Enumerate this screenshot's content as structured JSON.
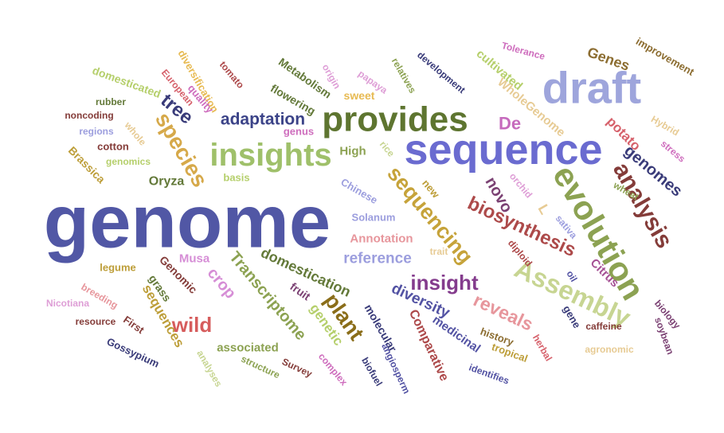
{
  "word_cloud": {
    "words": [
      {
        "text": "genome",
        "color": "#5157a5"
      },
      {
        "text": "sequence",
        "color": "#6a6bd0"
      },
      {
        "text": "draft",
        "color": "#9ea5dc"
      },
      {
        "text": "provides",
        "color": "#5e7530"
      },
      {
        "text": "insights",
        "color": "#9fc06a"
      },
      {
        "text": "evolution",
        "color": "#8ca252"
      },
      {
        "text": "Assembly",
        "color": "#c7d592"
      },
      {
        "text": "analysis",
        "color": "#843c39"
      },
      {
        "text": "sequencing",
        "color": "#c6a33a"
      },
      {
        "text": "species",
        "color": "#d6a94a"
      },
      {
        "text": "biosynthesis",
        "color": "#ad4a4a"
      },
      {
        "text": "plant",
        "color": "#8a6d19"
      },
      {
        "text": "wild",
        "color": "#d65c5c"
      },
      {
        "text": "insight",
        "color": "#843c8d"
      },
      {
        "text": "reveals",
        "color": "#e7969c"
      },
      {
        "text": "adaptation",
        "color": "#3b4388"
      },
      {
        "text": "genomes",
        "color": "#393b79"
      },
      {
        "text": "diversity",
        "color": "#5252a3"
      },
      {
        "text": "reference",
        "color": "#9c9ede"
      },
      {
        "text": "domestication",
        "color": "#637939"
      },
      {
        "text": "Transcriptome",
        "color": "#8ca252"
      },
      {
        "text": "tree",
        "color": "#393b79"
      },
      {
        "text": "De",
        "color": "#c66bbd"
      },
      {
        "text": "novo",
        "color": "#7b4173"
      },
      {
        "text": "crop",
        "color": "#d68ed6"
      },
      {
        "text": "sequences",
        "color": "#bd9e39"
      },
      {
        "text": "Genes",
        "color": "#8c6d31"
      },
      {
        "text": "potato",
        "color": "#d6616b"
      },
      {
        "text": "Comparative",
        "color": "#ad494a"
      },
      {
        "text": "genetic",
        "color": "#b5cf6b"
      },
      {
        "text": "WholeGenome",
        "color": "#e7cb94"
      },
      {
        "text": "Citrus",
        "color": "#a55194"
      },
      {
        "text": "Oryza",
        "color": "#637939"
      },
      {
        "text": "High",
        "color": "#8ca252"
      },
      {
        "text": "cultivated",
        "color": "#b5cf6b"
      },
      {
        "text": "improvement",
        "color": "#8c6d31"
      },
      {
        "text": "Metabolism",
        "color": "#637939"
      },
      {
        "text": "flowering",
        "color": "#637939"
      },
      {
        "text": "medicinal",
        "color": "#5252a3"
      },
      {
        "text": "molecular",
        "color": "#393b79"
      },
      {
        "text": "associated",
        "color": "#8ca252"
      },
      {
        "text": "Genomic",
        "color": "#843c39"
      },
      {
        "text": "Musa",
        "color": "#d68ed6"
      },
      {
        "text": "Annotation",
        "color": "#e7969c"
      },
      {
        "text": "Solanum",
        "color": "#9c9ede"
      },
      {
        "text": "new",
        "color": "#bd9e39"
      },
      {
        "text": "genus",
        "color": "#ce6dbd"
      },
      {
        "text": "sweet",
        "color": "#e7ba52"
      },
      {
        "text": "Chinese",
        "color": "#9c9ede"
      },
      {
        "text": "history",
        "color": "#8c6d31"
      },
      {
        "text": "tropical",
        "color": "#bd9e39"
      },
      {
        "text": "gene",
        "color": "#393b79"
      },
      {
        "text": "fruit",
        "color": "#7b4173"
      },
      {
        "text": "grass",
        "color": "#637939"
      },
      {
        "text": "First",
        "color": "#843c39"
      },
      {
        "text": "diversification",
        "color": "#e7ba52"
      },
      {
        "text": "domesticated",
        "color": "#b5cf6b"
      },
      {
        "text": "European",
        "color": "#d6616b"
      },
      {
        "text": "quality",
        "color": "#ce6dbd"
      },
      {
        "text": "tomato",
        "color": "#ad494a"
      },
      {
        "text": "origin",
        "color": "#de9ed6"
      },
      {
        "text": "papaya",
        "color": "#de9ed6"
      },
      {
        "text": "relatives",
        "color": "#8ca252"
      },
      {
        "text": "development",
        "color": "#393b79"
      },
      {
        "text": "Tolerance",
        "color": "#ce6dbd"
      },
      {
        "text": "rubber",
        "color": "#637939"
      },
      {
        "text": "noncoding",
        "color": "#843c39"
      },
      {
        "text": "regions",
        "color": "#9c9ede"
      },
      {
        "text": "whole",
        "color": "#e7cb94"
      },
      {
        "text": "cotton",
        "color": "#843c39"
      },
      {
        "text": "genomics",
        "color": "#b5cf6b"
      },
      {
        "text": "Brassica",
        "color": "#bd9e39"
      },
      {
        "text": "basis",
        "color": "#b5cf6b"
      },
      {
        "text": "rice",
        "color": "#c7d592"
      },
      {
        "text": "orchid",
        "color": "#de9ed6"
      },
      {
        "text": "wheat",
        "color": "#8ca252"
      },
      {
        "text": "stress",
        "color": "#ce6dbd"
      },
      {
        "text": "Hybrid",
        "color": "#e7cb94"
      },
      {
        "text": "sativa",
        "color": "#9c9ede"
      },
      {
        "text": "diploid",
        "color": "#ad494a"
      },
      {
        "text": "trait",
        "color": "#e7cb94"
      },
      {
        "text": "oil",
        "color": "#5252a3"
      },
      {
        "text": "biology",
        "color": "#7b4173"
      },
      {
        "text": "soybean",
        "color": "#7b4173"
      },
      {
        "text": "legume",
        "color": "#bd9e39"
      },
      {
        "text": "breeding",
        "color": "#e7969c"
      },
      {
        "text": "Nicotiana",
        "color": "#de9ed6"
      },
      {
        "text": "resource",
        "color": "#843c39"
      },
      {
        "text": "Gossypium",
        "color": "#393b79"
      },
      {
        "text": "analyses",
        "color": "#c7d592"
      },
      {
        "text": "structure",
        "color": "#8ca252"
      },
      {
        "text": "Survey",
        "color": "#843c39"
      },
      {
        "text": "complex",
        "color": "#ce6dbd"
      },
      {
        "text": "biofuel",
        "color": "#393b79"
      },
      {
        "text": "angiosperm",
        "color": "#5252a3"
      },
      {
        "text": "identifies",
        "color": "#5252a3"
      },
      {
        "text": "herbal",
        "color": "#d6616b"
      },
      {
        "text": "caffeine",
        "color": "#843c39"
      },
      {
        "text": "agronomic",
        "color": "#e7cb94"
      },
      {
        "text": "L",
        "color": "#e7cb94"
      }
    ]
  }
}
